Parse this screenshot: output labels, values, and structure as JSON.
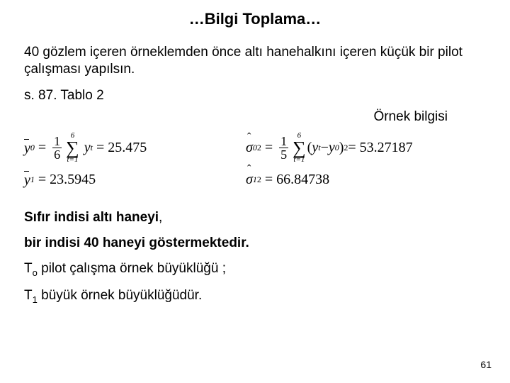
{
  "title": "…Bilgi Toplama…",
  "intro": "40 gözlem içeren örneklemden önce altı hanehalkını içeren küçük bir pilot çalışması yapılsın.",
  "ref": "s. 87. Tablo 2",
  "sample_info_label": "Örnek bilgisi",
  "eq": {
    "ybar0_sym": "y",
    "ybar0_sub": "0",
    "frac_1_6_num": "1",
    "frac_1_6_den": "6",
    "sum_top": "6",
    "sum_bot": "t=1",
    "yt": "y",
    "yt_sub": "t",
    "eq1_val": "= 25.475",
    "sigma0_sym": "σ",
    "sigma0_sub": "0",
    "sigma0_sup": "2",
    "frac_1_5_num": "1",
    "frac_1_5_den": "5",
    "paren_open": "(",
    "y0_sub": "0",
    "minus": " − ",
    "paren_close": ")",
    "sq": "2",
    "eq2_val": "= 53.27187",
    "ybar1_sub": "1",
    "eq3_val": "= 23.5945",
    "sigma1_sub": "1",
    "eq4_val": "= 66.84738"
  },
  "line1_a": "Sıfır indisi altı haneyi",
  "line1_b": ",",
  "line2": "bir indisi 40 haneyi göstermektedir.",
  "line3_a": "T",
  "line3_sub": "o",
  "line3_b": " pilot çalışma örnek büyüklüğü ;",
  "line4_a": "T",
  "line4_sub": "1",
  "line4_b": " büyük örnek büyüklüğüdür.",
  "pageno": "61"
}
